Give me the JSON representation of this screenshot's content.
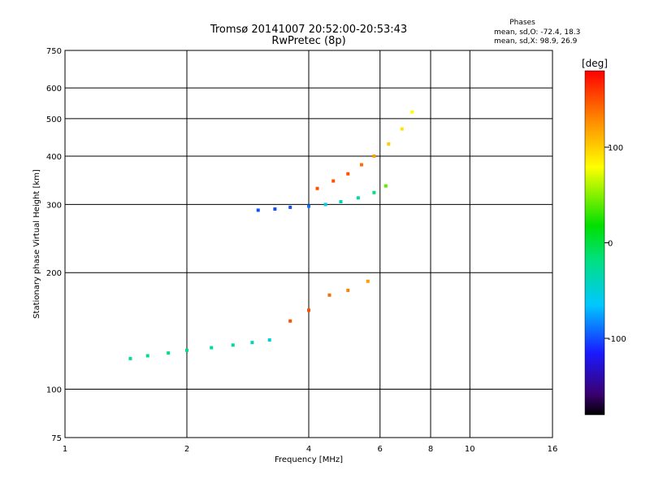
{
  "chart_data": {
    "type": "scatter",
    "title": "Tromsø 20141007 20:52:00-20:53:43",
    "subtitle": "RwPretec (8p)",
    "xlabel": "Frequency [MHz]",
    "ylabel": "Stationary phase Virtual Height [km]",
    "x_scale": "log",
    "y_scale": "log",
    "xlim": [
      1,
      16
    ],
    "ylim": [
      75,
      750
    ],
    "x_ticks": [
      1,
      2,
      4,
      6,
      8,
      10,
      16
    ],
    "x_tick_labels": [
      "1",
      "2",
      "4",
      "6",
      "8",
      "10",
      "16"
    ],
    "x_grid": [
      2,
      4,
      6,
      8,
      10
    ],
    "y_ticks": [
      75,
      100,
      200,
      300,
      400,
      500,
      600,
      750
    ],
    "y_tick_labels": [
      "75",
      "100",
      "200",
      "300",
      "400",
      "500",
      "600",
      "750"
    ],
    "y_grid": [
      100,
      200,
      300,
      400,
      500,
      600
    ],
    "grid": true,
    "phase_legend": {
      "title": "Phases",
      "line1": "mean, sd,O: -72.4, 18.3",
      "line2": "mean, sd,X:  98.9, 26.9"
    },
    "colorbar": {
      "label": "[deg]",
      "range": [
        -180,
        180
      ],
      "ticks": [
        100,
        0,
        -100
      ],
      "tick_labels": [
        "100",
        "0",
        "-100"
      ],
      "colormap": "rainbow"
    },
    "series": [
      {
        "x": [
          1.45,
          1.6,
          1.8,
          2.0,
          2.3,
          2.6,
          2.9,
          3.2,
          3.6,
          4.0,
          4.5,
          5.0,
          5.6
        ],
        "y": [
          120,
          122,
          124,
          126,
          128,
          130,
          132,
          134,
          150,
          160,
          175,
          180,
          190
        ],
        "phase": [
          -20,
          -20,
          -20,
          -20,
          -30,
          -30,
          -40,
          -50,
          150,
          150,
          140,
          130,
          120
        ]
      },
      {
        "x": [
          3.0,
          3.3,
          3.6,
          4.0,
          4.4,
          4.8,
          5.3,
          5.8,
          6.2
        ],
        "y": [
          290,
          292,
          295,
          297,
          300,
          305,
          312,
          322,
          335
        ],
        "phase": [
          -100,
          -100,
          -100,
          -90,
          -60,
          -40,
          -30,
          -20,
          40
        ]
      },
      {
        "x": [
          4.2,
          4.6,
          5.0,
          5.4,
          5.8,
          6.3,
          6.8,
          7.2
        ],
        "y": [
          330,
          345,
          360,
          380,
          400,
          430,
          470,
          520
        ],
        "phase": [
          150,
          150,
          150,
          140,
          120,
          100,
          90,
          80
        ]
      }
    ]
  }
}
